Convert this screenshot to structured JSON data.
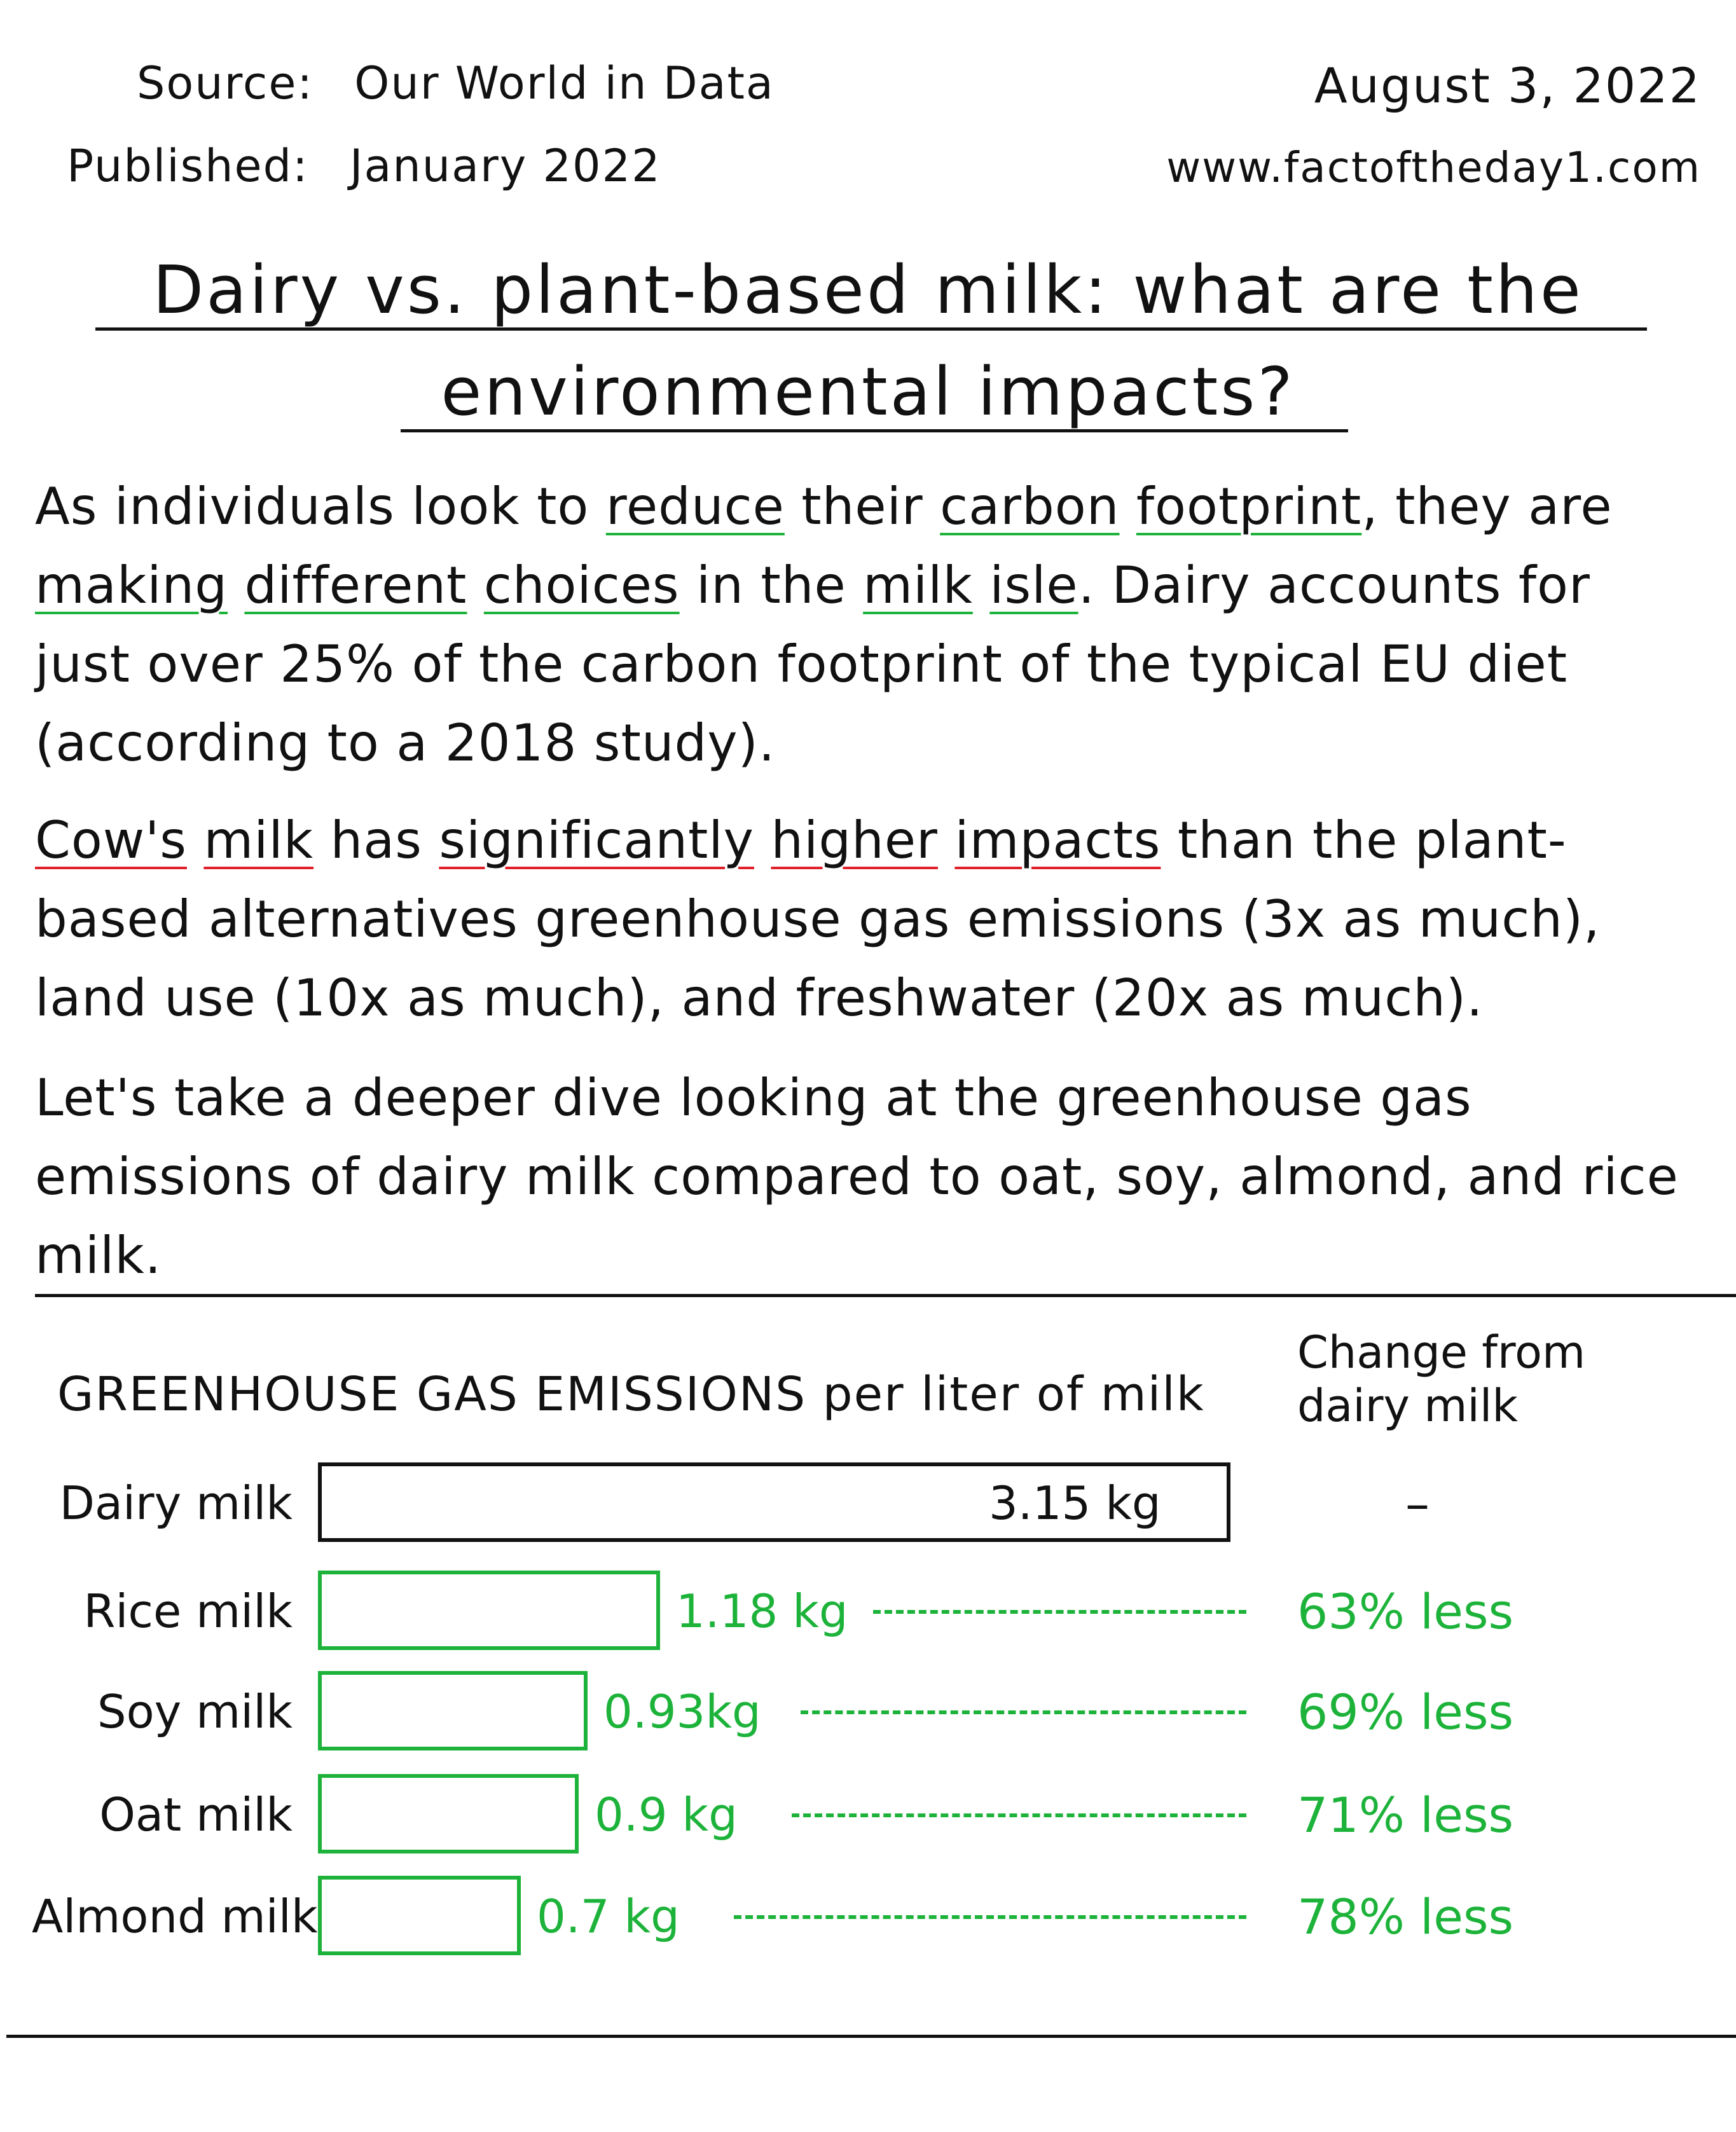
{
  "header": {
    "source_label": "Source:",
    "source_value": "Our World in Data",
    "published_label": "Published:",
    "published_value": "January 2022",
    "date": "August 3, 2022",
    "website": "www.factoftheday1.com"
  },
  "title": {
    "line1": "Dairy vs. plant-based milk: what are the",
    "line2": "environmental impacts?"
  },
  "paragraph1": {
    "t1": "As individuals look to ",
    "u1": "reduce",
    "t2": " their ",
    "u2": "carbon",
    "t3": " ",
    "u3": "footprint",
    "t4": ", they are ",
    "u4": "making",
    "t5": " ",
    "u5": "different",
    "t6": " ",
    "u6": "choices",
    "t7": " in the ",
    "u7": "milk",
    "t8": " ",
    "u8": "isle",
    "t9": ". Dairy accounts for just over 25% of the carbon footprint of the typical EU diet (according to a 2018 study)."
  },
  "paragraph2": {
    "u1": "Cow's",
    "t1": " ",
    "u2": "milk",
    "t2": " has ",
    "u3": "significantly",
    "t3": " ",
    "u4": "higher",
    "t4": " ",
    "u5": "impacts",
    "t5": " than the plant-based alternatives greenhouse gas emissions (3x as much), land use (10x as much), and freshwater (20x as much)."
  },
  "paragraph3": "Let's take a deeper dive looking at the greenhouse gas emissions of dairy milk compared to oat, soy, almond, and rice milk.",
  "colors": {
    "green": "#1db33a",
    "black": "#111111",
    "red_underline": "#e0202a"
  },
  "chart_data": {
    "type": "bar",
    "orientation": "horizontal",
    "title": "GREENHOUSE GAS EMISSIONS per liter of milk",
    "change_header": "Change from dairy milk",
    "categories": [
      "Dairy milk",
      "Rice milk",
      "Soy milk",
      "Oat milk",
      "Almond milk"
    ],
    "values": [
      3.15,
      1.18,
      0.93,
      0.9,
      0.7
    ],
    "value_labels": [
      "3.15 kg",
      "1.18 kg",
      "0.93kg",
      "0.9 kg",
      "0.7 kg"
    ],
    "unit": "kg",
    "change_labels": [
      "–",
      "63% less",
      "69% less",
      "71% less",
      "78% less"
    ],
    "bar_colors": [
      "#111111",
      "#1db33a",
      "#1db33a",
      "#1db33a",
      "#1db33a"
    ],
    "xlim": [
      0,
      3.15
    ]
  }
}
